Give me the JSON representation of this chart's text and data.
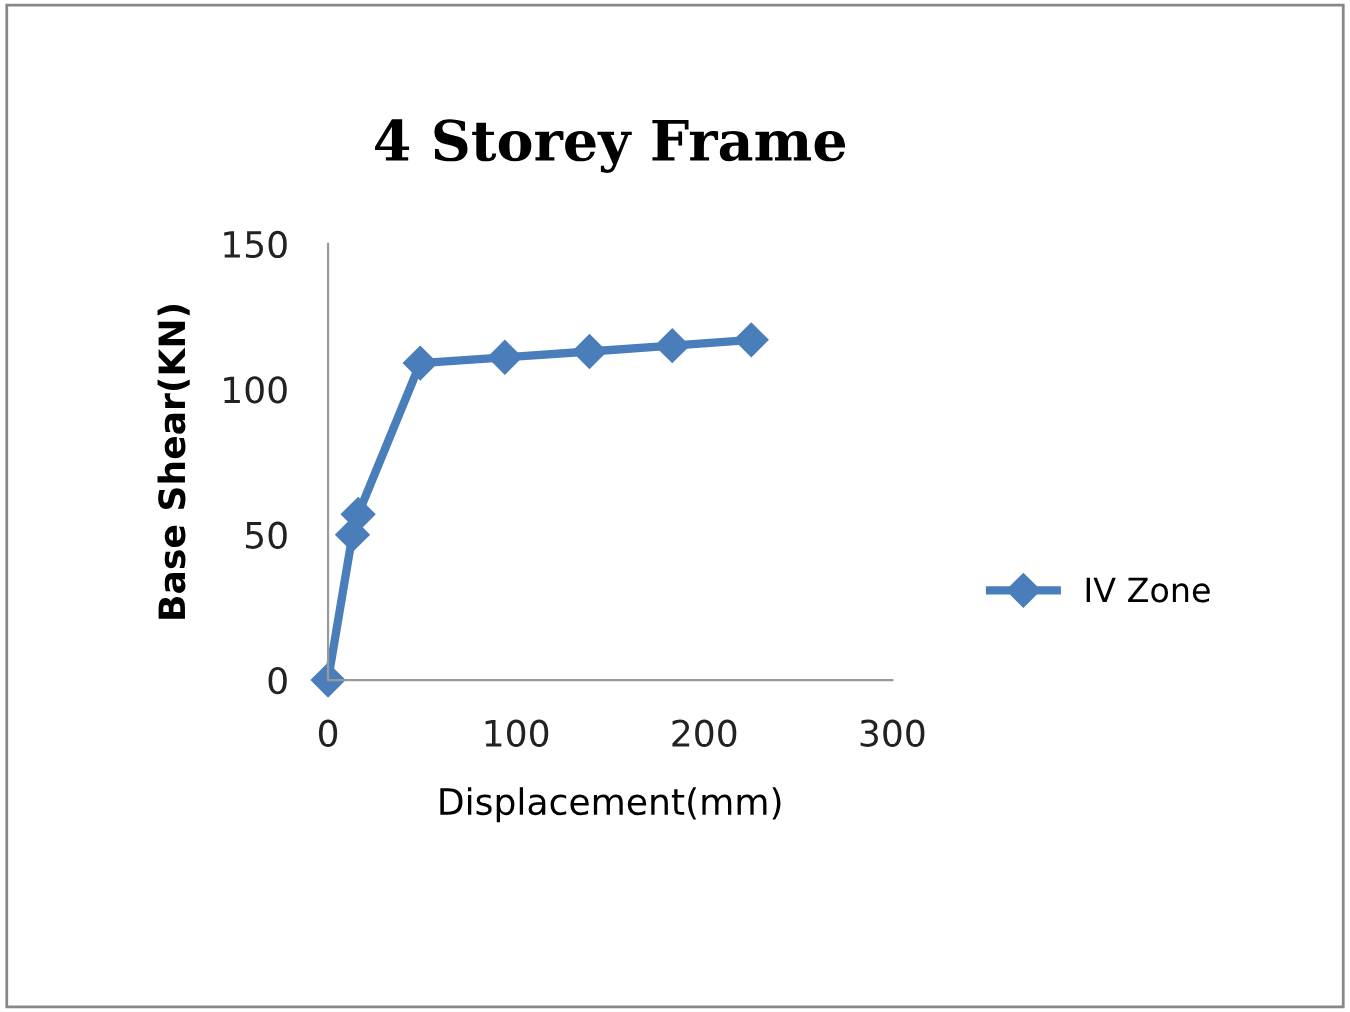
{
  "chart_data": {
    "type": "line",
    "title": "4 Storey Frame",
    "xlabel": "Displacement(mm)",
    "ylabel": "Base Shear(KN)",
    "x": [
      0,
      13,
      16,
      49,
      94,
      139,
      183,
      225
    ],
    "series": [
      {
        "name": "IV Zone",
        "color": "#4a7ebb",
        "values": [
          0,
          50,
          57,
          109,
          111,
          113,
          115,
          117
        ]
      }
    ],
    "xlim": [
      0,
      300
    ],
    "ylim": [
      0,
      150
    ],
    "xticks": [
      0,
      100,
      200,
      300
    ],
    "yticks": [
      0,
      50,
      100,
      150
    ],
    "grid": false,
    "legend": "right",
    "marker": "diamond",
    "line_style": "solid"
  }
}
